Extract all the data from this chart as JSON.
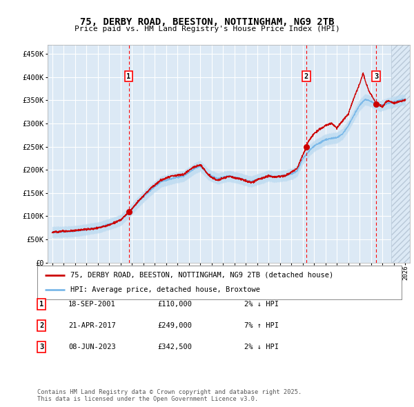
{
  "title": "75, DERBY ROAD, BEESTON, NOTTINGHAM, NG9 2TB",
  "subtitle": "Price paid vs. HM Land Registry's House Price Index (HPI)",
  "background_color": "#ffffff",
  "plot_bg_color": "#dce9f5",
  "grid_color": "#ffffff",
  "sale_color": "#cc0000",
  "hpi_color": "#7ab8e8",
  "hpi_fill_color": "#b8d8f0",
  "ylim": [
    0,
    470000
  ],
  "yticks": [
    0,
    50000,
    100000,
    150000,
    200000,
    250000,
    300000,
    350000,
    400000,
    450000
  ],
  "ytick_labels": [
    "£0",
    "£50K",
    "£100K",
    "£150K",
    "£200K",
    "£250K",
    "£300K",
    "£350K",
    "£400K",
    "£450K"
  ],
  "xlim_start": 1994.6,
  "xlim_end": 2026.4,
  "hatch_start": 2024.75,
  "sales": [
    {
      "date": 2001.72,
      "price": 110000,
      "label": "1"
    },
    {
      "date": 2017.31,
      "price": 249000,
      "label": "2"
    },
    {
      "date": 2023.44,
      "price": 342500,
      "label": "3"
    }
  ],
  "sale_table": [
    {
      "num": "1",
      "date": "18-SEP-2001",
      "price": "£110,000",
      "change": "2% ↓ HPI"
    },
    {
      "num": "2",
      "date": "21-APR-2017",
      "price": "£249,000",
      "change": "7% ↑ HPI"
    },
    {
      "num": "3",
      "date": "08-JUN-2023",
      "price": "£342,500",
      "change": "2% ↓ HPI"
    }
  ],
  "legend_line1": "75, DERBY ROAD, BEESTON, NOTTINGHAM, NG9 2TB (detached house)",
  "legend_line2": "HPI: Average price, detached house, Broxtowe",
  "footer": "Contains HM Land Registry data © Crown copyright and database right 2025.\nThis data is licensed under the Open Government Licence v3.0."
}
